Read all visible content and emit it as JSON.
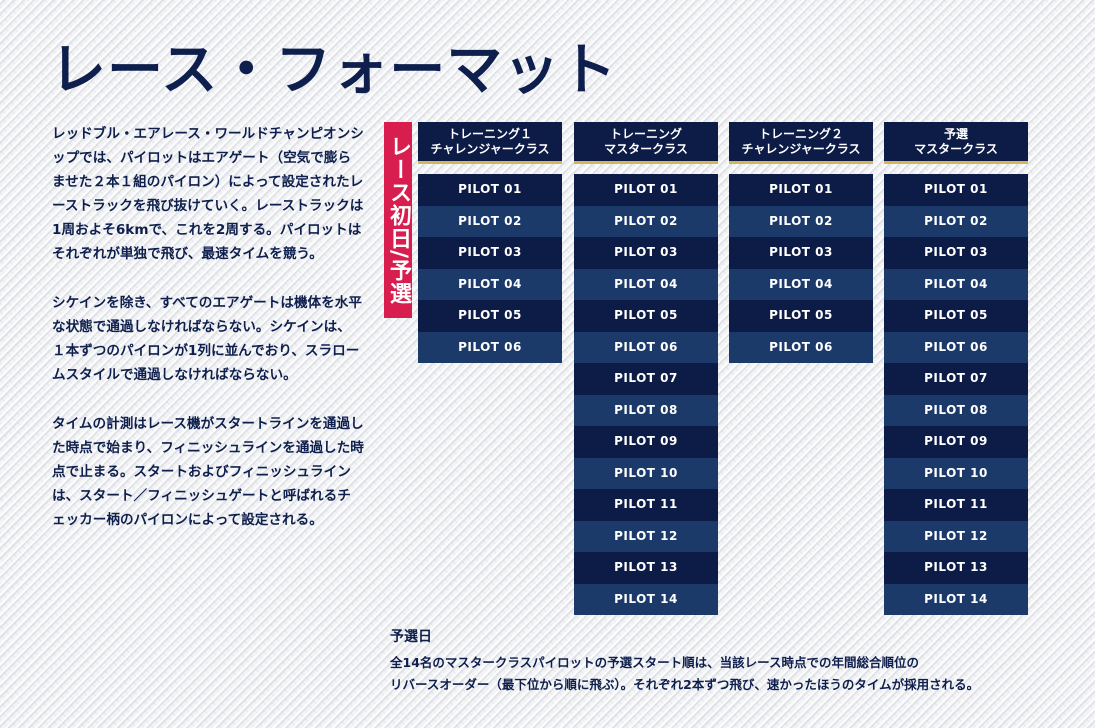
{
  "title": "レース・フォーマット",
  "paragraphs": [
    "レッドブル・エアレース・ワールドチャンピオンシップでは、パイロットはエアゲート（空気で膨らませた２本１組のパイロン）によって設定されたレーストラックを飛び抜けていく。レーストラックは 1周およそ6kmで、これを2周する。パイロットはそれぞれが単独で飛び、最速タイムを競う。",
    "シケインを除き、すべてのエアゲートは機体を水平な状態で通過しなければならない。シケインは、１本ずつのパイロンが1列に並んでおり、スラロームスタイルで通過しなければならない。",
    "タイムの計測はレース機がスタートラインを通過した時点で始まり、フィニッシュラインを通過した時点で止まる。スタートおよびフィニッシュラインは、スタート／フィニッシュゲートと呼ばれるチェッカー柄のパイロンによって設定される。"
  ],
  "day_label": "レース初日/予選",
  "heats": [
    {
      "title_line1": "トレーニング１",
      "title_line2": "チャレンジャークラス",
      "pilots": [
        "PILOT 01",
        "PILOT 02",
        "PILOT 03",
        "PILOT 04",
        "PILOT 05",
        "PILOT 06"
      ]
    },
    {
      "title_line1": "トレーニング",
      "title_line2": "マスタークラス",
      "pilots": [
        "PILOT 01",
        "PILOT 02",
        "PILOT 03",
        "PILOT 04",
        "PILOT 05",
        "PILOT 06",
        "PILOT 07",
        "PILOT 08",
        "PILOT 09",
        "PILOT 10",
        "PILOT 11",
        "PILOT 12",
        "PILOT 13",
        "PILOT 14"
      ]
    },
    {
      "title_line1": "トレーニング２",
      "title_line2": "チャレンジャークラス",
      "pilots": [
        "PILOT 01",
        "PILOT 02",
        "PILOT 03",
        "PILOT 04",
        "PILOT 05",
        "PILOT 06"
      ]
    },
    {
      "title_line1": "予選",
      "title_line2": "マスタークラス",
      "pilots": [
        "PILOT 01",
        "PILOT 02",
        "PILOT 03",
        "PILOT 04",
        "PILOT 05",
        "PILOT 06",
        "PILOT 07",
        "PILOT 08",
        "PILOT 09",
        "PILOT 10",
        "PILOT 11",
        "PILOT 12",
        "PILOT 13",
        "PILOT 14"
      ]
    }
  ],
  "footnote": {
    "title": "予選日",
    "line1": "全14名のマスタークラスパイロットの予選スタート順は、当該レース時点での年間総合順位の",
    "line2": "リバースオーダー（最下位から順に飛ぶ）。それぞれ2本ずつ飛び、速かったほうのタイムが採用される。"
  },
  "colors": {
    "navy_dark": "#0d1b47",
    "navy_light": "#1b3a69",
    "accent_gold": "#d4b656",
    "accent_red": "#d81e4f",
    "text": "#0e1f4d"
  }
}
